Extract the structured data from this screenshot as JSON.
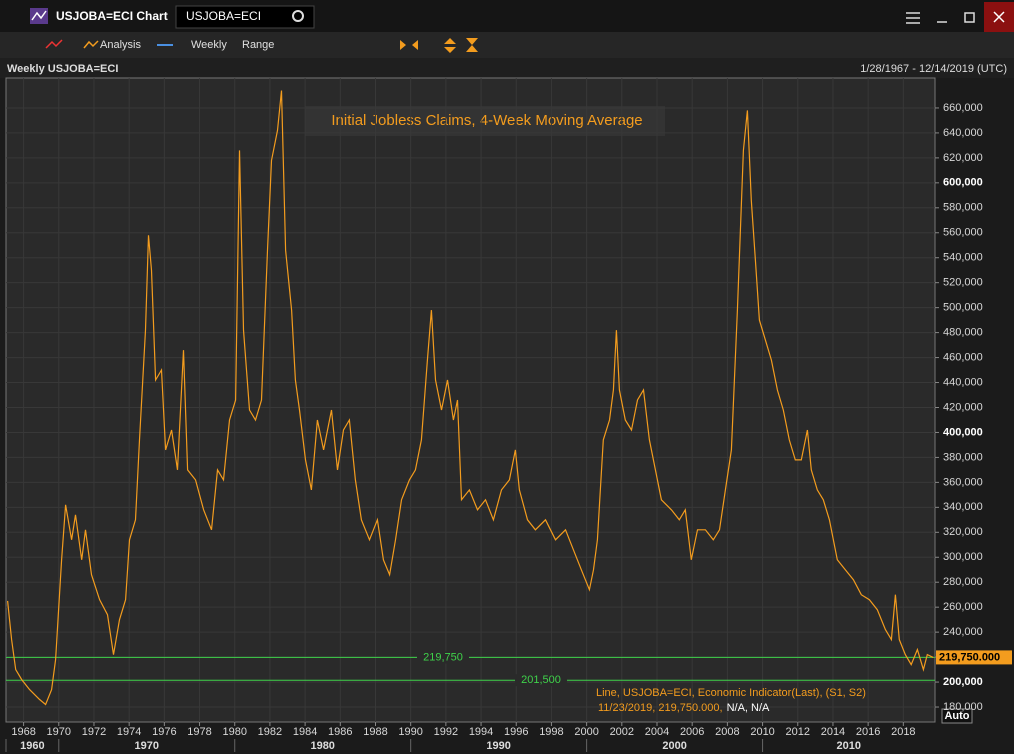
{
  "window": {
    "title": "USJOBA=ECI Chart",
    "search": "USJOBA=ECI",
    "toolbar": [
      "Analysis",
      "Weekly",
      "Range"
    ],
    "chart_label": "Weekly USJOBA=ECI",
    "date_range": "1/28/1967 - 12/14/2019 (UTC)",
    "auto": "Auto"
  },
  "chart_data": {
    "type": "line",
    "title": "Initial Jobless Claims, 4-Week Moving Average",
    "series": [
      {
        "name": "USJOBA=ECI",
        "color": "#f39c1e",
        "x": [
          1967.09,
          1967.32,
          1967.55,
          1967.89,
          1968.34,
          1968.91,
          1969.25,
          1969.59,
          1969.82,
          1970.16,
          1970.39,
          1970.73,
          1970.95,
          1971.3,
          1971.52,
          1971.86,
          1972.32,
          1972.77,
          1973.11,
          1973.45,
          1973.8,
          1974.02,
          1974.36,
          1974.59,
          1974.93,
          1975.1,
          1975.27,
          1975.5,
          1975.84,
          1976.07,
          1976.41,
          1976.75,
          1977.09,
          1977.32,
          1977.77,
          1978.23,
          1978.68,
          1979.02,
          1979.36,
          1979.7,
          1980.05,
          1980.27,
          1980.5,
          1980.84,
          1981.18,
          1981.52,
          1981.86,
          1982.09,
          1982.43,
          1982.66,
          1982.89,
          1983.23,
          1983.45,
          1983.68,
          1984.02,
          1984.36,
          1984.7,
          1985.05,
          1985.5,
          1985.84,
          1986.18,
          1986.52,
          1986.86,
          1987.2,
          1987.66,
          1988.11,
          1988.45,
          1988.8,
          1989.14,
          1989.48,
          1989.93,
          1990.27,
          1990.61,
          1990.95,
          1991.18,
          1991.41,
          1991.75,
          1992.09,
          1992.43,
          1992.66,
          1992.89,
          1993.34,
          1993.8,
          1994.25,
          1994.7,
          1995.16,
          1995.61,
          1995.95,
          1996.18,
          1996.64,
          1997.09,
          1997.66,
          1998.23,
          1998.8,
          1999.25,
          1999.7,
          2000.16,
          2000.39,
          2000.61,
          2000.95,
          2001.3,
          2001.52,
          2001.69,
          2001.86,
          2002.2,
          2002.55,
          2002.89,
          2003.23,
          2003.57,
          2003.91,
          2004.25,
          2004.82,
          2005.27,
          2005.61,
          2005.95,
          2006.3,
          2006.75,
          2007.2,
          2007.55,
          2007.89,
          2008.23,
          2008.57,
          2008.91,
          2009.14,
          2009.36,
          2009.59,
          2009.82,
          2010.16,
          2010.5,
          2010.84,
          2011.18,
          2011.52,
          2011.86,
          2012.2,
          2012.55,
          2012.77,
          2013.11,
          2013.45,
          2013.8,
          2014.25,
          2014.7,
          2015.16,
          2015.61,
          2016.07,
          2016.52,
          2016.98,
          2017.32,
          2017.55,
          2017.77,
          2018.11,
          2018.45,
          2018.8,
          2019.14,
          2019.36,
          2019.7
        ],
        "values": [
          265000,
          234000,
          210000,
          202000,
          194000,
          186000,
          182000,
          194000,
          218000,
          298000,
          342000,
          314000,
          334000,
          298000,
          322000,
          286000,
          266000,
          254000,
          222000,
          250000,
          266000,
          314000,
          330000,
          394000,
          482000,
          558000,
          530000,
          442000,
          450000,
          386000,
          402000,
          370000,
          466000,
          370000,
          362000,
          338000,
          322000,
          370000,
          362000,
          410000,
          426000,
          626000,
          482000,
          418000,
          410000,
          426000,
          546000,
          618000,
          642000,
          674000,
          546000,
          498000,
          442000,
          418000,
          378000,
          354000,
          410000,
          386000,
          418000,
          370000,
          402000,
          410000,
          362000,
          330000,
          314000,
          330000,
          298000,
          286000,
          314000,
          346000,
          362000,
          370000,
          394000,
          458000,
          498000,
          442000,
          418000,
          442000,
          410000,
          426000,
          346000,
          354000,
          338000,
          346000,
          330000,
          354000,
          362000,
          386000,
          354000,
          330000,
          322000,
          330000,
          314000,
          322000,
          306000,
          290000,
          274000,
          290000,
          314000,
          394000,
          410000,
          434000,
          482000,
          434000,
          410000,
          402000,
          426000,
          434000,
          394000,
          370000,
          346000,
          338000,
          330000,
          338000,
          298000,
          322000,
          322000,
          314000,
          322000,
          354000,
          386000,
          498000,
          626000,
          658000,
          586000,
          538000,
          490000,
          474000,
          458000,
          434000,
          418000,
          394000,
          378000,
          378000,
          402000,
          370000,
          354000,
          346000,
          330000,
          298000,
          290000,
          282000,
          270000,
          266000,
          258000,
          242000,
          234000,
          270000,
          234000,
          222000,
          214000,
          226000,
          210000,
          222000,
          219750
        ]
      }
    ],
    "xlim": [
      1967.0,
      2019.8
    ],
    "ylim": [
      168000,
      684000
    ],
    "xticks": [
      1968,
      1970,
      1972,
      1974,
      1976,
      1978,
      1980,
      1982,
      1984,
      1986,
      1988,
      1990,
      1992,
      1994,
      1996,
      1998,
      2000,
      2002,
      2004,
      2006,
      2008,
      2010,
      2012,
      2014,
      2016,
      2018
    ],
    "xticks_major": [
      1960,
      1970,
      1980,
      1990,
      2000,
      2010
    ],
    "yticks": [
      {
        "value": 180000,
        "label": "180,000"
      },
      {
        "value": 200000,
        "label": "200,000"
      },
      {
        "value": 220000,
        "label": "220,000"
      },
      {
        "value": 240000,
        "label": "240,000"
      },
      {
        "value": 260000,
        "label": "260,000"
      },
      {
        "value": 280000,
        "label": "280,000"
      },
      {
        "value": 300000,
        "label": "300,000"
      },
      {
        "value": 320000,
        "label": "320,000"
      },
      {
        "value": 340000,
        "label": "340,000"
      },
      {
        "value": 360000,
        "label": "360,000"
      },
      {
        "value": 380000,
        "label": "380,000"
      },
      {
        "value": 400000,
        "label": "400,000"
      },
      {
        "value": 420000,
        "label": "420,000"
      },
      {
        "value": 440000,
        "label": "440,000"
      },
      {
        "value": 460000,
        "label": "460,000"
      },
      {
        "value": 480000,
        "label": "480,000"
      },
      {
        "value": 500000,
        "label": "500,000"
      },
      {
        "value": 520000,
        "label": "520,000"
      },
      {
        "value": 540000,
        "label": "540,000"
      },
      {
        "value": 560000,
        "label": "560,000"
      },
      {
        "value": 580000,
        "label": "580,000"
      },
      {
        "value": 600000,
        "label": "600,000"
      },
      {
        "value": 620000,
        "label": "620,000"
      },
      {
        "value": 640000,
        "label": "640,000"
      },
      {
        "value": 660000,
        "label": "660,000"
      }
    ],
    "hlines": [
      {
        "value": 219750,
        "label": "219,750"
      },
      {
        "value": 201500,
        "label": "201,500"
      }
    ],
    "hline_color": "#3fd24a",
    "last_label": "219,750.000",
    "note_lines": [
      "Line, USJOBA=ECI, Economic Indicator(Last), (S1, S2)",
      "11/23/2019, 219,750.000,",
      "N/A, N/A"
    ],
    "grid": true
  }
}
